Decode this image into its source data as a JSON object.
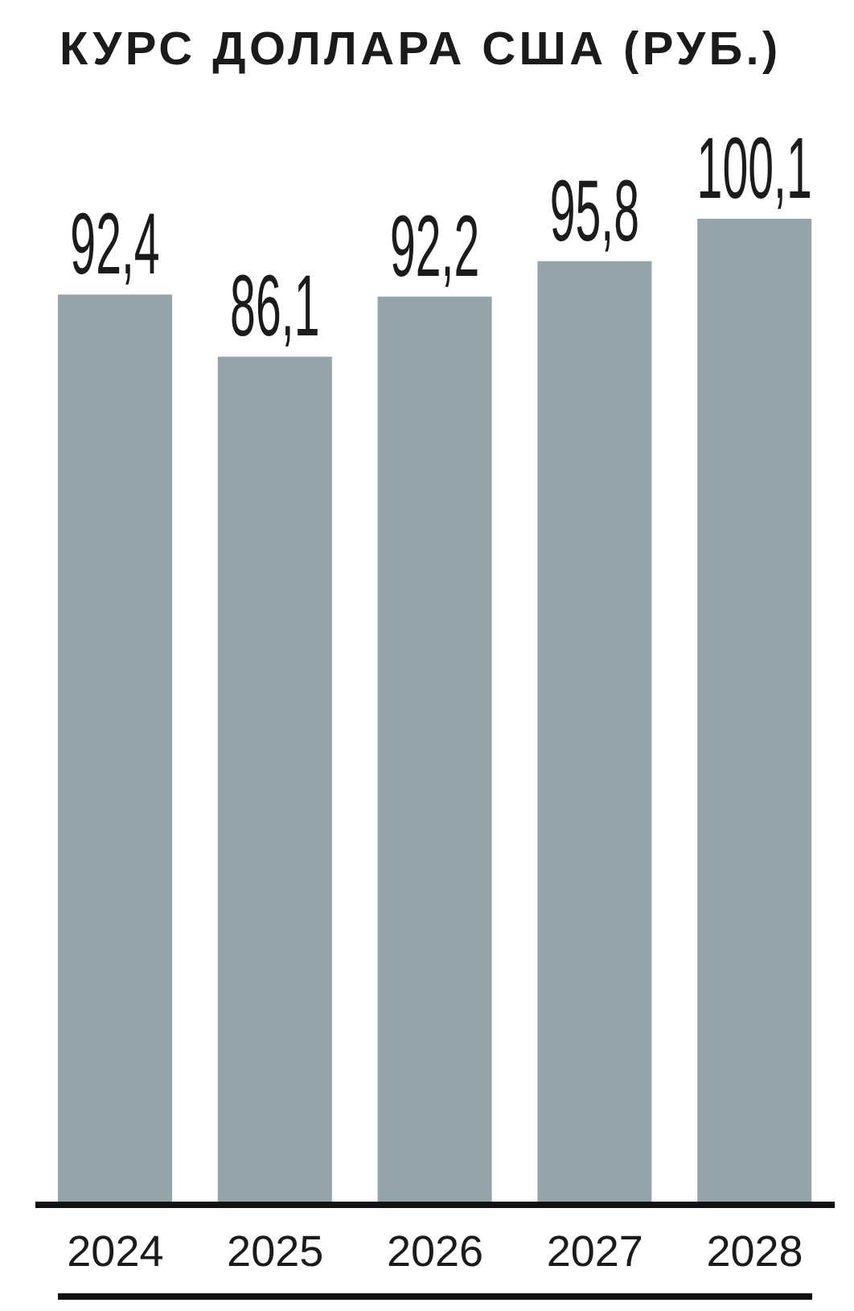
{
  "chart_data": {
    "type": "bar",
    "title": "КУРС ДОЛЛАРА США (РУБ.)",
    "categories": [
      "2024",
      "2025",
      "2026",
      "2027",
      "2028"
    ],
    "values": [
      92.4,
      86.1,
      92.2,
      95.8,
      100.1
    ],
    "value_labels": [
      "92,4",
      "86,1",
      "92,2",
      "95,8",
      "100,1"
    ],
    "color": "#95a3ab",
    "tick_labels": "x"
  }
}
